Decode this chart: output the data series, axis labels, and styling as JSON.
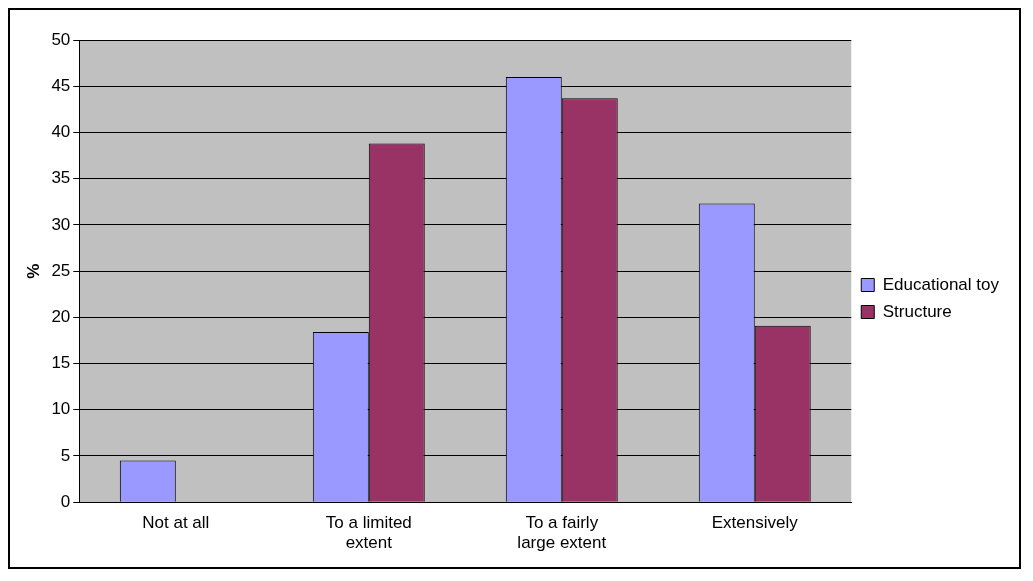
{
  "chart_data": {
    "type": "bar",
    "ylabel": "%",
    "categories": [
      "Not at all",
      "To a limited extent",
      "To a fairly large extent",
      "Extensively"
    ],
    "series": [
      {
        "name": "Educational toy",
        "color": "#9999ff",
        "values": [
          4.5,
          18.4,
          46,
          32.3
        ]
      },
      {
        "name": "Structure",
        "color": "#993366",
        "values": [
          0,
          38.8,
          43.7,
          19.1
        ]
      }
    ],
    "ylim": [
      0,
      50
    ],
    "yticks": [
      0,
      5,
      10,
      15,
      20,
      25,
      30,
      35,
      40,
      45,
      50
    ],
    "grid": "y",
    "legend": "right"
  }
}
